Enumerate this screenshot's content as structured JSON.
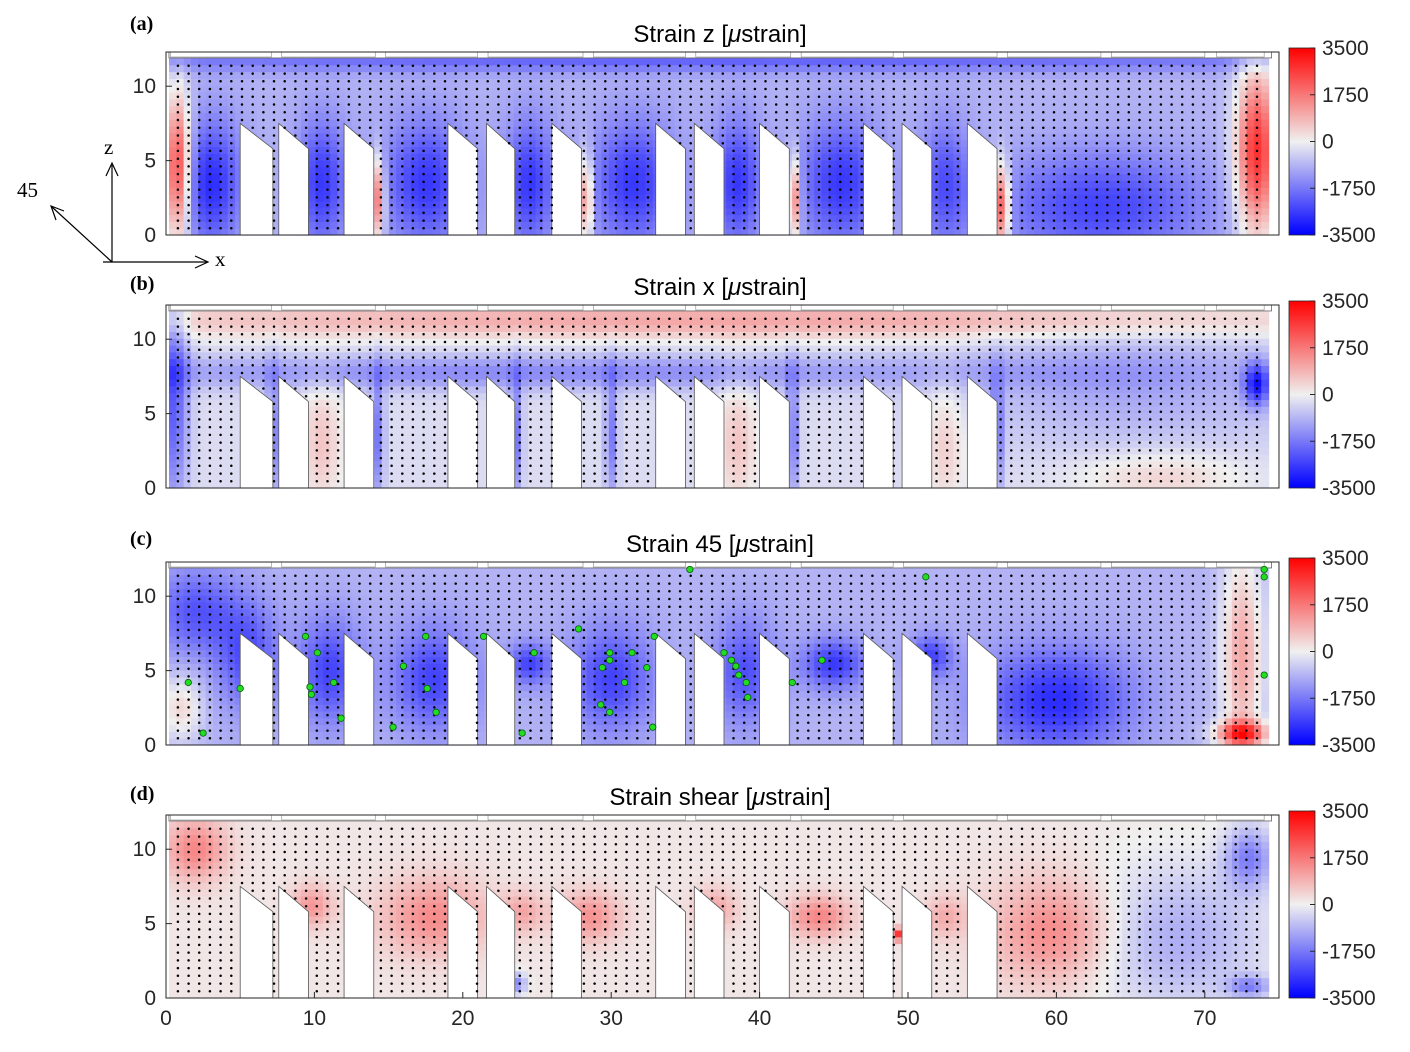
{
  "chart_data": [
    {
      "type": "heatmap",
      "panel_label": "(a)",
      "title": "Strain z [μstrain]",
      "title_prefix": "Strain z [",
      "title_mu": "μ",
      "title_suffix": "strain]",
      "xlim": [
        0,
        75
      ],
      "ylim": [
        0,
        12.3
      ],
      "x_ticks": [],
      "y_ticks": [
        "0",
        "5",
        "10"
      ],
      "colorbar_ticks": [
        "3500",
        "1750",
        "0",
        "-1750",
        "-3500"
      ],
      "clim": [
        -3500,
        3500
      ],
      "field": {
        "base": -900,
        "hotspots": [
          {
            "x": 0.8,
            "z": 4.5,
            "sx": 0.6,
            "sz": 3.5,
            "v": 3500
          },
          {
            "x": 73.5,
            "z": 5.5,
            "sx": 1.0,
            "sz": 4.0,
            "v": 3500
          },
          {
            "x": 14.3,
            "z": 2.5,
            "sx": 0.3,
            "sz": 2.0,
            "v": 2500
          },
          {
            "x": 28.3,
            "z": 2.5,
            "sx": 0.3,
            "sz": 2.0,
            "v": 2500
          },
          {
            "x": 42.3,
            "z": 2.5,
            "sx": 0.3,
            "sz": 2.0,
            "v": 2500
          },
          {
            "x": 56.3,
            "z": 2.0,
            "sx": 0.4,
            "sz": 2.0,
            "v": 3200
          },
          {
            "x": 3.0,
            "z": 3.5,
            "sx": 1.5,
            "sz": 3.0,
            "v": -3200
          },
          {
            "x": 10.5,
            "z": 3.5,
            "sx": 1.2,
            "sz": 3.0,
            "v": -3000
          },
          {
            "x": 17.5,
            "z": 3.5,
            "sx": 2.0,
            "sz": 3.0,
            "v": -3000
          },
          {
            "x": 24.5,
            "z": 3.5,
            "sx": 1.2,
            "sz": 3.0,
            "v": -3000
          },
          {
            "x": 31.5,
            "z": 3.5,
            "sx": 2.0,
            "sz": 3.0,
            "v": -3000
          },
          {
            "x": 38.5,
            "z": 3.5,
            "sx": 1.2,
            "sz": 3.0,
            "v": -3000
          },
          {
            "x": 45.5,
            "z": 3.5,
            "sx": 2.0,
            "sz": 3.0,
            "v": -3000
          },
          {
            "x": 52.5,
            "z": 3.5,
            "sx": 1.2,
            "sz": 3.0,
            "v": -2500
          },
          {
            "x": 63.0,
            "z": 2.0,
            "sx": 5.0,
            "sz": 2.5,
            "v": -2800
          },
          {
            "x": 37.0,
            "z": 11.7,
            "sx": 40.0,
            "sz": 0.5,
            "v": -2200
          }
        ]
      },
      "markers": []
    },
    {
      "type": "heatmap",
      "panel_label": "(b)",
      "title": "Strain x [μstrain]",
      "title_prefix": "Strain x [",
      "title_mu": "μ",
      "title_suffix": "strain]",
      "xlim": [
        0,
        75
      ],
      "ylim": [
        0,
        12.3
      ],
      "x_ticks": [],
      "y_ticks": [
        "0",
        "5",
        "10"
      ],
      "colorbar_ticks": [
        "3500",
        "1750",
        "0",
        "-1750",
        "-3500"
      ],
      "clim": [
        -3500,
        3500
      ],
      "field": {
        "base": -300,
        "hotspots": [
          {
            "x": 37.0,
            "z": 11.3,
            "sx": 36.0,
            "sz": 0.9,
            "v": 1300
          },
          {
            "x": 0.5,
            "z": 6.0,
            "sx": 0.7,
            "sz": 5.0,
            "v": -2500
          },
          {
            "x": 25.0,
            "z": 7.8,
            "sx": 25.0,
            "sz": 0.8,
            "v": -1700
          },
          {
            "x": 7.2,
            "z": 3.5,
            "sx": 0.3,
            "sz": 3.0,
            "v": -2000
          },
          {
            "x": 14.3,
            "z": 3.5,
            "sx": 0.3,
            "sz": 3.0,
            "v": -2000
          },
          {
            "x": 23.6,
            "z": 3.5,
            "sx": 0.3,
            "sz": 3.0,
            "v": -2000
          },
          {
            "x": 30.0,
            "z": 3.5,
            "sx": 0.3,
            "sz": 3.0,
            "v": -2000
          },
          {
            "x": 42.2,
            "z": 3.5,
            "sx": 0.3,
            "sz": 3.0,
            "v": -2200
          },
          {
            "x": 56.0,
            "z": 3.5,
            "sx": 0.3,
            "sz": 3.0,
            "v": -2000
          },
          {
            "x": 73.5,
            "z": 7.0,
            "sx": 0.6,
            "sz": 1.0,
            "v": -3200
          },
          {
            "x": 65.0,
            "z": 7.0,
            "sx": 8.0,
            "sz": 3.0,
            "v": -1200
          },
          {
            "x": 10.5,
            "z": 3.0,
            "sx": 1.0,
            "sz": 3.0,
            "v": 800
          },
          {
            "x": 38.5,
            "z": 3.0,
            "sx": 1.0,
            "sz": 3.0,
            "v": 800
          },
          {
            "x": 52.5,
            "z": 3.0,
            "sx": 1.0,
            "sz": 3.0,
            "v": 700
          },
          {
            "x": 67.0,
            "z": 0.8,
            "sx": 4.0,
            "sz": 1.2,
            "v": 600
          }
        ]
      },
      "markers": []
    },
    {
      "type": "heatmap",
      "panel_label": "(c)",
      "title": "Strain 45 [μstrain]",
      "title_prefix": "Strain 45 [",
      "title_mu": "μ",
      "title_suffix": "strain]",
      "xlim": [
        0,
        75
      ],
      "ylim": [
        0,
        12.3
      ],
      "x_ticks": [],
      "y_ticks": [
        "0",
        "5",
        "10"
      ],
      "colorbar_ticks": [
        "3500",
        "1750",
        "0",
        "-1750",
        "-3500"
      ],
      "clim": [
        -3500,
        3500
      ],
      "field": {
        "base": -900,
        "hotspots": [
          {
            "x": 2.0,
            "z": 9.0,
            "sx": 2.0,
            "sz": 2.0,
            "v": -2500
          },
          {
            "x": 5.5,
            "z": 6.0,
            "sx": 1.5,
            "sz": 2.5,
            "v": -2600
          },
          {
            "x": 11.0,
            "z": 5.0,
            "sx": 1.5,
            "sz": 2.5,
            "v": -2800
          },
          {
            "x": 18.0,
            "z": 4.5,
            "sx": 2.0,
            "sz": 2.5,
            "v": -2800
          },
          {
            "x": 24.5,
            "z": 5.5,
            "sx": 1.0,
            "sz": 1.0,
            "v": -2800
          },
          {
            "x": 30.0,
            "z": 4.5,
            "sx": 2.0,
            "sz": 2.5,
            "v": -2800
          },
          {
            "x": 39.0,
            "z": 5.0,
            "sx": 1.5,
            "sz": 2.5,
            "v": -2600
          },
          {
            "x": 45.0,
            "z": 5.5,
            "sx": 1.5,
            "sz": 1.2,
            "v": -3000
          },
          {
            "x": 51.5,
            "z": 6.0,
            "sx": 1.0,
            "sz": 1.0,
            "v": -2800
          },
          {
            "x": 60.0,
            "z": 3.0,
            "sx": 3.5,
            "sz": 2.5,
            "v": -3200
          },
          {
            "x": 72.5,
            "z": 6.0,
            "sx": 1.0,
            "sz": 5.0,
            "v": 1400
          },
          {
            "x": 72.5,
            "z": 0.8,
            "sx": 1.2,
            "sz": 0.6,
            "v": 3000
          },
          {
            "x": 1.0,
            "z": 2.5,
            "sx": 1.0,
            "sz": 1.5,
            "v": 600
          }
        ]
      },
      "markers": [
        [
          1.5,
          4.2
        ],
        [
          2.5,
          0.8
        ],
        [
          5.0,
          3.8
        ],
        [
          9.4,
          7.3
        ],
        [
          10.2,
          6.2
        ],
        [
          9.7,
          3.9
        ],
        [
          9.8,
          3.4
        ],
        [
          11.3,
          4.2
        ],
        [
          11.8,
          1.8
        ],
        [
          15.3,
          1.2
        ],
        [
          16.0,
          5.3
        ],
        [
          17.5,
          7.3
        ],
        [
          17.6,
          3.8
        ],
        [
          18.2,
          2.2
        ],
        [
          21.4,
          7.3
        ],
        [
          24.0,
          0.8
        ],
        [
          24.8,
          6.2
        ],
        [
          27.8,
          7.8
        ],
        [
          29.4,
          5.2
        ],
        [
          29.9,
          6.2
        ],
        [
          29.9,
          5.7
        ],
        [
          29.3,
          2.7
        ],
        [
          29.9,
          2.2
        ],
        [
          30.9,
          4.2
        ],
        [
          31.4,
          6.2
        ],
        [
          32.4,
          5.2
        ],
        [
          32.9,
          7.3
        ],
        [
          32.8,
          1.2
        ],
        [
          35.3,
          11.8
        ],
        [
          37.6,
          6.2
        ],
        [
          38.1,
          5.7
        ],
        [
          38.6,
          4.7
        ],
        [
          39.1,
          4.2
        ],
        [
          39.2,
          3.2
        ],
        [
          38.4,
          5.3
        ],
        [
          42.2,
          4.2
        ],
        [
          44.2,
          5.7
        ],
        [
          51.2,
          11.3
        ],
        [
          74.0,
          11.8
        ],
        [
          74.0,
          11.3
        ],
        [
          74.0,
          4.7
        ]
      ]
    },
    {
      "type": "heatmap",
      "panel_label": "(d)",
      "title": "Strain shear [μstrain]",
      "title_prefix": "Strain shear [",
      "title_mu": "μ",
      "title_suffix": "strain]",
      "xlim": [
        0,
        75
      ],
      "ylim": [
        0,
        12.3
      ],
      "x_ticks": [
        "0",
        "10",
        "20",
        "30",
        "40",
        "50",
        "60",
        "70"
      ],
      "y_ticks": [
        "0",
        "5",
        "10"
      ],
      "colorbar_ticks": [
        "3500",
        "1750",
        "0",
        "-1750",
        "-3500"
      ],
      "clim": [
        -3500,
        3500
      ],
      "field": {
        "base": 150,
        "hotspots": [
          {
            "x": 2.0,
            "z": 10.0,
            "sx": 1.5,
            "sz": 1.5,
            "v": 1800
          },
          {
            "x": 18.0,
            "z": 5.5,
            "sx": 2.5,
            "sz": 1.8,
            "v": 1700
          },
          {
            "x": 28.5,
            "z": 5.5,
            "sx": 1.5,
            "sz": 1.2,
            "v": 1600
          },
          {
            "x": 9.8,
            "z": 6.2,
            "sx": 1.0,
            "sz": 1.0,
            "v": 1500
          },
          {
            "x": 24.0,
            "z": 5.8,
            "sx": 1.0,
            "sz": 1.0,
            "v": 1200
          },
          {
            "x": 37.0,
            "z": 6.0,
            "sx": 1.0,
            "sz": 1.0,
            "v": 1300
          },
          {
            "x": 44.0,
            "z": 5.5,
            "sx": 1.5,
            "sz": 1.0,
            "v": 1800
          },
          {
            "x": 52.5,
            "z": 5.5,
            "sx": 1.0,
            "sz": 1.0,
            "v": 1100
          },
          {
            "x": 60.0,
            "z": 4.5,
            "sx": 3.0,
            "sz": 2.5,
            "v": 1900
          },
          {
            "x": 68.0,
            "z": 4.0,
            "sx": 4.5,
            "sz": 3.5,
            "v": -1200
          },
          {
            "x": 73.0,
            "z": 9.5,
            "sx": 1.2,
            "sz": 1.5,
            "v": -1800
          },
          {
            "x": 49.3,
            "z": 4.3,
            "sx": 0.3,
            "sz": 0.3,
            "v": 3200
          },
          {
            "x": 23.7,
            "z": 1.0,
            "sx": 0.4,
            "sz": 0.5,
            "v": -1800
          },
          {
            "x": 73.0,
            "z": 0.8,
            "sx": 1.0,
            "sz": 0.5,
            "v": -1600
          }
        ]
      },
      "markers": []
    }
  ],
  "axes_inset": {
    "z_label": "z",
    "x_label": "x",
    "diag_label": "45"
  },
  "colors": {
    "negative_max": "#0000ff",
    "zero": "#f0f0f0",
    "positive_max": "#ff0000",
    "marker_fill": "#22dd22",
    "grid_dot": "#000000"
  }
}
